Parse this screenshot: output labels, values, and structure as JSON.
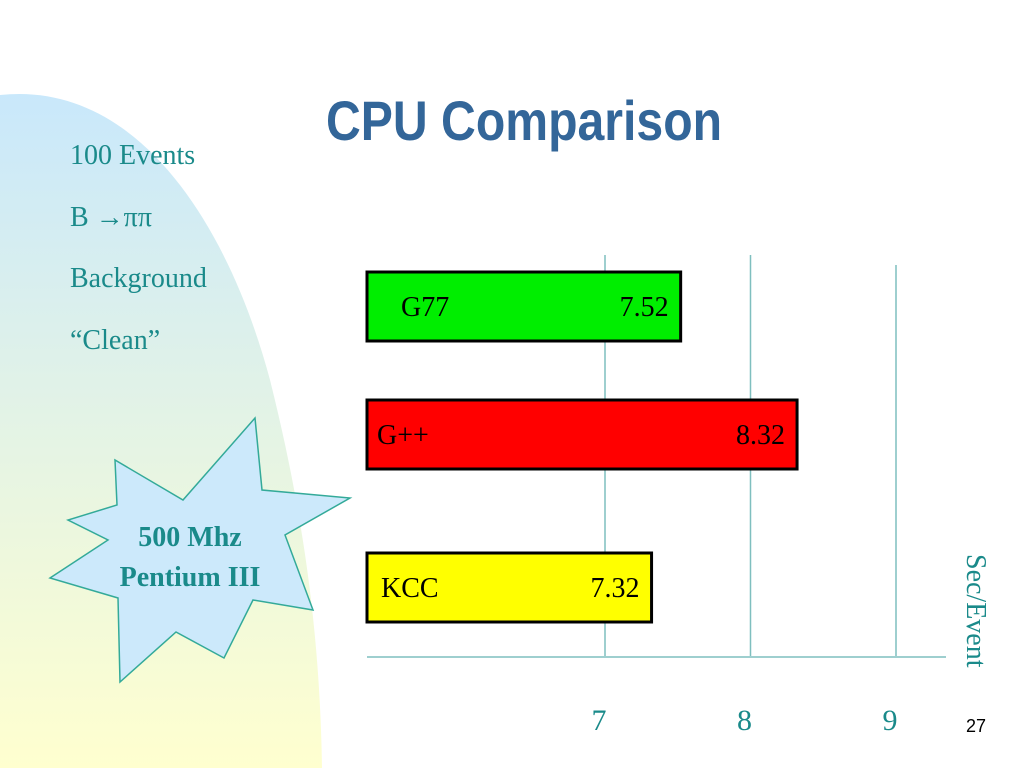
{
  "slide": {
    "title": "CPU Comparison",
    "info_lines": [
      "100 Events",
      "B →ππ",
      "Background",
      "“Clean”"
    ],
    "burst_lines": [
      "500 Mhz",
      "Pentium III"
    ],
    "page_number": "27"
  },
  "colors": {
    "title": "#336699",
    "text": "#1a8a8a",
    "grid": "#7fbfbf",
    "burst_fill": "#cce9fb",
    "burst_stroke": "#33aa99"
  },
  "chart_data": {
    "type": "bar",
    "orientation": "horizontal",
    "categories": [
      "G77",
      "G++",
      "KCC"
    ],
    "values": [
      7.52,
      8.32,
      7.32
    ],
    "value_labels": [
      "7.52",
      "8.32",
      "7.32"
    ],
    "bar_colors": [
      "#00ee00",
      "#ff0000",
      "#ffff00"
    ],
    "xlabel": "Sec/Event",
    "x_ticks": [
      7,
      8,
      9
    ],
    "x_tick_labels": [
      "7",
      "8",
      "9"
    ],
    "grid": true
  }
}
